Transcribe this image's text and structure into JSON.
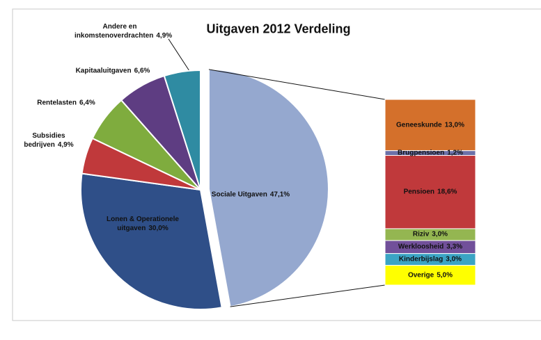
{
  "chart_data": {
    "type": "pie-of-bar",
    "title": "Uitgaven 2012 Verdeling",
    "categories": [
      "Sociale Uitgaven",
      "Lonen & Operationele uitgaven",
      "Subsidies bedrijven",
      "Rentelasten",
      "Kapitaaluitgaven",
      "Andere en inkomstenoverdrachten"
    ],
    "values": [
      47.1,
      30.0,
      4.9,
      6.4,
      6.6,
      4.9
    ],
    "value_labels": [
      "47,1%",
      "30,0%",
      "4,9%",
      "6,4%",
      "6,6%",
      "4,9%"
    ],
    "colors": [
      "#95a8cf",
      "#2f4f88",
      "#c0393b",
      "#7fac3e",
      "#5e3d82",
      "#2f8ba2"
    ],
    "bar": {
      "categories": [
        "Geneeskunde",
        "Brugpensioen",
        "Pensioen",
        "Riziv",
        "Werkloosheid",
        "Kinderbijslag",
        "Overige"
      ],
      "values": [
        13.0,
        1.2,
        18.6,
        3.0,
        3.3,
        3.0,
        5.0
      ],
      "value_labels": [
        "13,0%",
        "1,2%",
        "18,6%",
        "3,0%",
        "3,3%",
        "3,0%",
        "5,0%"
      ],
      "colors": [
        "#d4702b",
        "#6b70a8",
        "#c0393b",
        "#94b651",
        "#71509a",
        "#3ba4c4",
        "#ffff00"
      ]
    }
  }
}
